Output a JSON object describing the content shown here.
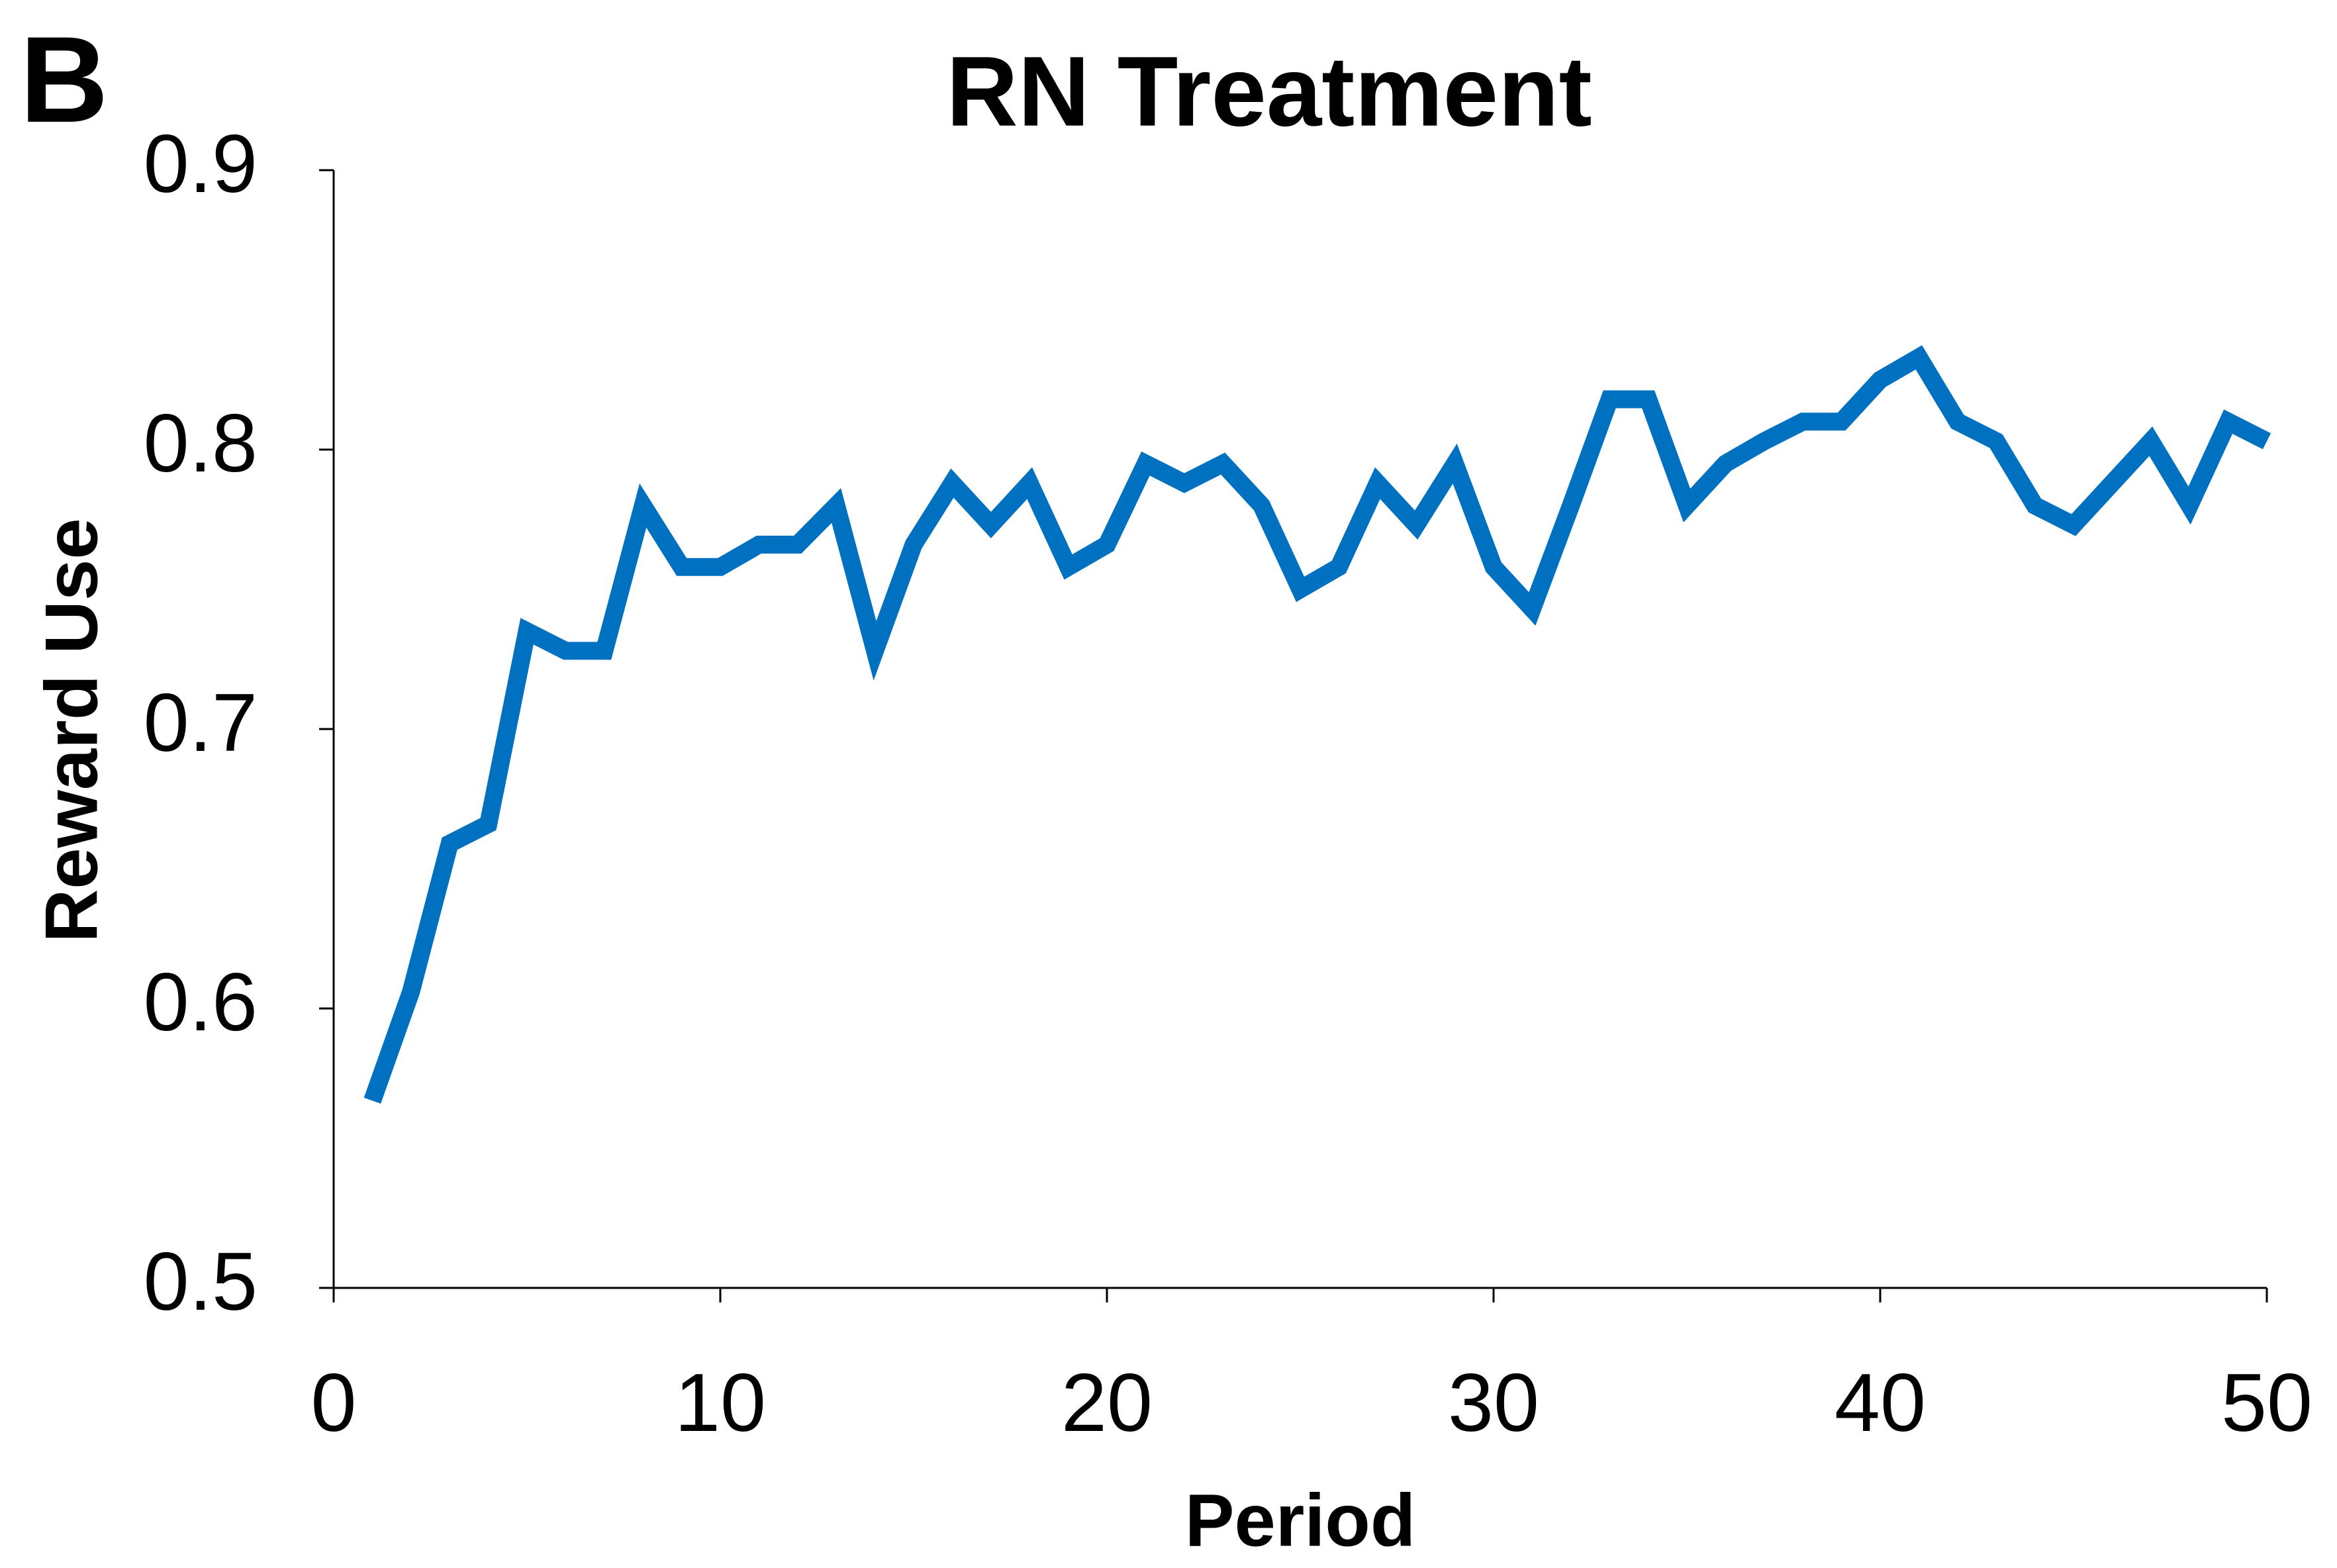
{
  "chart_data": {
    "type": "line",
    "panel_label": "B",
    "title": "RN Treatment",
    "x_label": "Period",
    "y_label": "Reward Use",
    "x": [
      1,
      2,
      3,
      4,
      5,
      6,
      7,
      8,
      9,
      10,
      11,
      12,
      13,
      14,
      15,
      16,
      17,
      18,
      19,
      20,
      21,
      22,
      23,
      24,
      25,
      26,
      27,
      28,
      29,
      30,
      31,
      32,
      33,
      34,
      35,
      36,
      37,
      38,
      39,
      40,
      41,
      42,
      43,
      44,
      45,
      46,
      47,
      48,
      49,
      50
    ],
    "series": [
      {
        "name": "Reward Use",
        "color": "#0070c0",
        "values": [
          0.567,
          0.606,
          0.659,
          0.666,
          0.735,
          0.728,
          0.728,
          0.78,
          0.758,
          0.758,
          0.766,
          0.766,
          0.78,
          0.728,
          0.766,
          0.788,
          0.773,
          0.788,
          0.758,
          0.766,
          0.795,
          0.788,
          0.795,
          0.78,
          0.75,
          0.758,
          0.788,
          0.773,
          0.795,
          0.758,
          0.743,
          0.78,
          0.818,
          0.818,
          0.78,
          0.795,
          0.803,
          0.81,
          0.81,
          0.825,
          0.833,
          0.81,
          0.803,
          0.78,
          0.773,
          0.788,
          0.803,
          0.78,
          0.81,
          0.803
        ]
      }
    ],
    "xlim": [
      0,
      50
    ],
    "xticks": [
      0,
      10,
      20,
      30,
      40,
      50
    ],
    "ylim": [
      0.5,
      0.9
    ],
    "yticks": [
      0.5,
      0.6,
      0.7,
      0.8,
      0.9
    ],
    "grid": false
  }
}
